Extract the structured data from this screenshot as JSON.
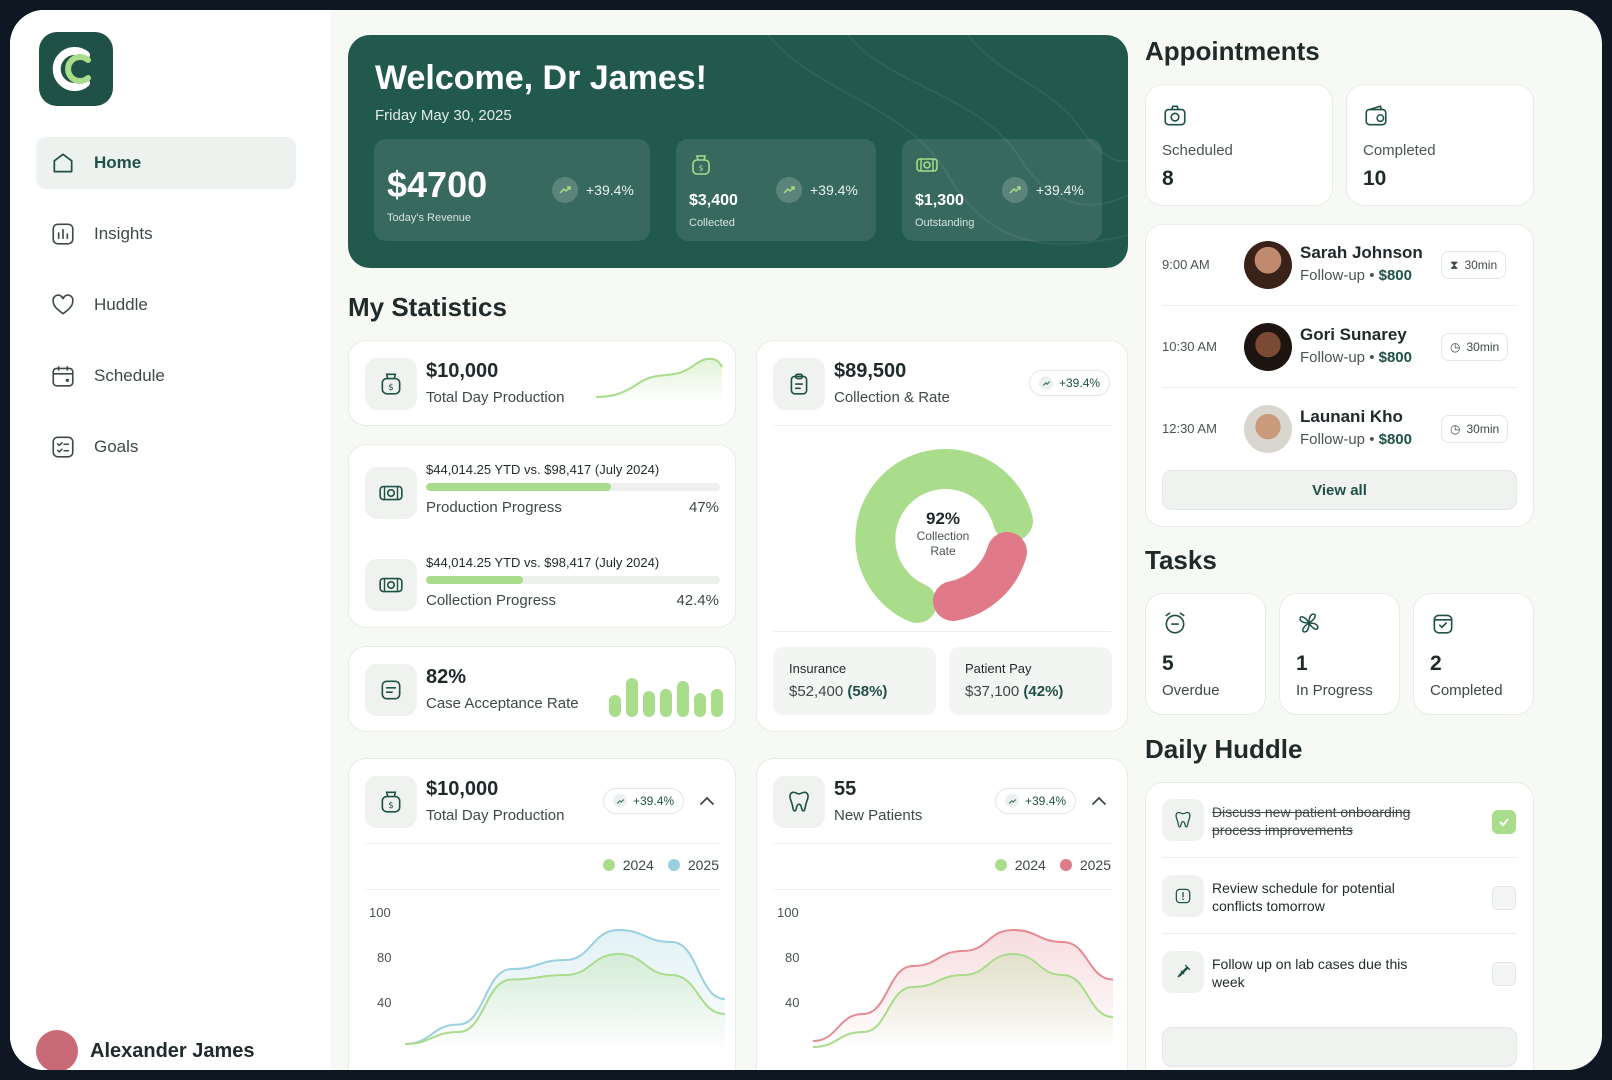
{
  "sidebar": {
    "nav": [
      {
        "label": "Home",
        "icon": "home-icon",
        "active": true
      },
      {
        "label": "Insights",
        "icon": "insights-icon"
      },
      {
        "label": "Huddle",
        "icon": "heart-icon"
      },
      {
        "label": "Schedule",
        "icon": "calendar-icon"
      },
      {
        "label": "Goals",
        "icon": "checklist-icon"
      }
    ],
    "profile_name": "Alexander James"
  },
  "hero": {
    "title": "Welcome, Dr James!",
    "date": "Friday May 30, 2025",
    "revenue": {
      "value": "$4700",
      "label": "Today's Revenue",
      "trend": "+39.4%"
    },
    "collected": {
      "value": "$3,400",
      "label": "Collected",
      "trend": "+39.4%"
    },
    "outstanding": {
      "value": "$1,300",
      "label": "Outstanding",
      "trend": "+39.4%"
    }
  },
  "statistics": {
    "title": "My Statistics",
    "total_day_production": {
      "value": "$10,000",
      "label": "Total Day Production"
    },
    "production_progress": {
      "caption": "$44,014.25 YTD vs. $98,417 (July 2024)",
      "label": "Production Progress",
      "percent": "47%",
      "fraction": 0.47
    },
    "collection_progress": {
      "caption": "$44,014.25 YTD vs. $98,417 (July 2024)",
      "label": "Collection Progress",
      "percent": "42.4%",
      "fraction": 0.424
    },
    "case_acceptance": {
      "value": "82%",
      "label": "Case Acceptance Rate"
    },
    "collection_rate": {
      "value": "$89,500",
      "label": "Collection & Rate",
      "trend": "+39.4%",
      "center_value": "92%",
      "center_label_1": "Collection",
      "center_label_2": "Rate",
      "insurance_label": "Insurance",
      "insurance_value": "$52,400",
      "insurance_pct": "(58%)",
      "patient_label": "Patient Pay",
      "patient_value": "$37,100",
      "patient_pct": "(42%)"
    },
    "production_chart": {
      "value": "$10,000",
      "label": "Total Day Production",
      "trend": "+39.4%",
      "legend_a": "2024",
      "legend_b": "2025"
    },
    "patients_chart": {
      "value": "55",
      "label": "New Patients",
      "trend": "+39.4%",
      "legend_a": "2024",
      "legend_b": "2025"
    }
  },
  "chart_data": [
    {
      "type": "area",
      "title": "Total Day Production",
      "y_ticks": [
        "100",
        "80",
        "40"
      ],
      "series": [
        {
          "name": "2024",
          "values": [
            12,
            20,
            55,
            58,
            72,
            58,
            32
          ],
          "color": "#a9dc8b"
        },
        {
          "name": "2025",
          "values": [
            12,
            25,
            62,
            68,
            88,
            80,
            42
          ],
          "color": "#9ad0df"
        }
      ]
    },
    {
      "type": "area",
      "title": "New Patients",
      "y_ticks": [
        "100",
        "80",
        "40"
      ],
      "series": [
        {
          "name": "2024",
          "values": [
            10,
            20,
            50,
            58,
            72,
            58,
            30
          ],
          "color": "#a9dc8b"
        },
        {
          "name": "2025",
          "values": [
            14,
            32,
            64,
            74,
            88,
            80,
            55
          ],
          "color": "#e58b94"
        }
      ]
    }
  ],
  "appointments": {
    "title": "Appointments",
    "scheduled": {
      "label": "Scheduled",
      "value": "8"
    },
    "completed": {
      "label": "Completed",
      "value": "10"
    },
    "list": [
      {
        "time": "9:00 AM",
        "name": "Sarah Johnson",
        "type": "Follow-up",
        "price": "$800",
        "duration": "30min"
      },
      {
        "time": "10:30 AM",
        "name": "Gori Sunarey",
        "type": "Follow-up",
        "price": "$800",
        "duration": "30min"
      },
      {
        "time": "12:30 AM",
        "name": "Launani Kho",
        "type": "Follow-up",
        "price": "$800",
        "duration": "30min"
      }
    ],
    "view_all": "View all"
  },
  "tasks": {
    "title": "Tasks",
    "overdue": {
      "value": "5",
      "label": "Overdue"
    },
    "in_progress": {
      "value": "1",
      "label": "In Progress"
    },
    "completed": {
      "value": "2",
      "label": "Completed"
    }
  },
  "huddle": {
    "title": "Daily Huddle",
    "items": [
      {
        "text": "Discuss new patient onboarding process improvements",
        "done": true
      },
      {
        "text": "Review schedule for potential conflicts tomorrow",
        "done": false
      },
      {
        "text": "Follow up on lab cases due this week",
        "done": false
      }
    ]
  },
  "colors": {
    "brand": "#22594d",
    "accent_green": "#a9dc8b",
    "accent_pink": "#e07a88",
    "accent_blue": "#9ad0df"
  }
}
